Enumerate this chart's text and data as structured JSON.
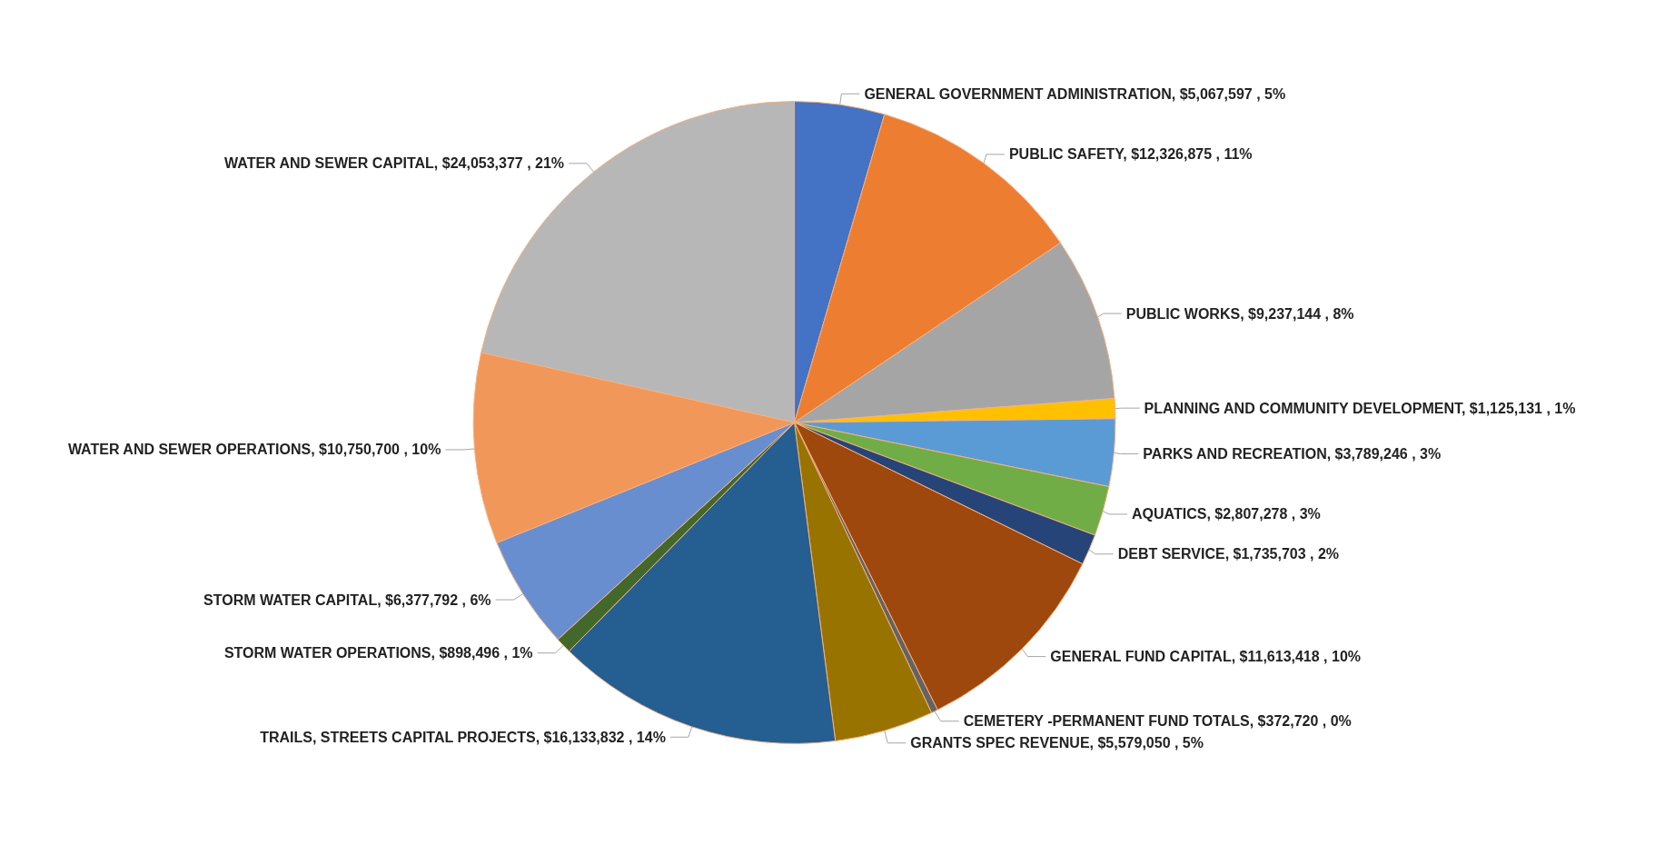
{
  "chart_data": {
    "type": "pie",
    "categories": [
      "GENERAL GOVERNMENT ADMINISTRATION",
      "PUBLIC SAFETY",
      "PUBLIC WORKS",
      "PLANNING AND COMMUNITY DEVELOPMENT",
      "PARKS AND RECREATION",
      "AQUATICS",
      "DEBT SERVICE",
      "GENERAL FUND CAPITAL",
      "CEMETERY -PERMANENT FUND TOTALS",
      "GRANTS SPEC REVENUE",
      "TRAILS, STREETS CAPITAL PROJECTS",
      "STORM WATER OPERATIONS",
      "STORM WATER CAPITAL",
      "WATER AND SEWER OPERATIONS",
      "WATER AND SEWER CAPITAL"
    ],
    "values": [
      5067597,
      12326875,
      9237144,
      1125131,
      3789246,
      2807278,
      1735703,
      11613418,
      372720,
      5579050,
      16133832,
      898496,
      6377792,
      10750700,
      24053377
    ],
    "value_labels": [
      "$5,067,597 , 5%",
      "$12,326,875 , 11%",
      "$9,237,144 , 8%",
      "$1,125,131 , 1%",
      "$3,789,246 , 3%",
      "$2,807,278 , 3%",
      "$1,735,703 , 2%",
      "$11,613,418 , 10%",
      "$372,720 , 0%",
      "$5,579,050 , 5%",
      "$16,133,832 , 14%",
      "$898,496 , 1%",
      "$6,377,792 , 6%",
      "$10,750,700 , 10%",
      "$24,053,377 , 21%"
    ],
    "colors": [
      "#4472c4",
      "#ed7d31",
      "#a5a5a5",
      "#ffc000",
      "#5b9bd5",
      "#70ad47",
      "#264478",
      "#9e480e",
      "#636363",
      "#997300",
      "#255e91",
      "#43682b",
      "#698ed0",
      "#f1975a",
      "#b7b7b7"
    ],
    "legend": false
  }
}
